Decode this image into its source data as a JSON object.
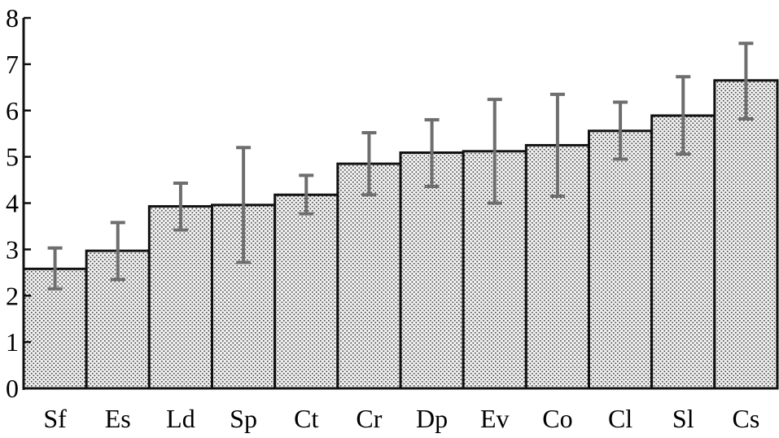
{
  "chart_data": {
    "type": "bar",
    "categories": [
      "Sf",
      "Es",
      "Ld",
      "Sp",
      "Ct",
      "Cr",
      "Dp",
      "Ev",
      "Co",
      "Cl",
      "Sl",
      "Cs"
    ],
    "values": [
      2.58,
      2.97,
      3.93,
      3.96,
      4.18,
      4.85,
      5.09,
      5.12,
      5.25,
      5.56,
      5.89,
      6.65
    ],
    "error_lower": [
      2.15,
      2.35,
      3.42,
      2.72,
      3.77,
      4.18,
      4.36,
      4.0,
      4.15,
      4.95,
      5.06,
      5.82
    ],
    "error_upper": [
      3.03,
      3.58,
      4.43,
      5.2,
      4.6,
      5.52,
      5.8,
      6.24,
      6.35,
      6.18,
      6.73,
      7.45
    ],
    "ylim": [
      0,
      8
    ],
    "yticks": [
      "0",
      "1",
      "2",
      "3",
      "4",
      "5",
      "6",
      "7",
      "8"
    ],
    "title": "",
    "xlabel": "",
    "ylabel": "",
    "bar_fill": "#f2f2f2",
    "bar_dot_color": "#444444",
    "bar_edge_color": "#111111",
    "error_bar_color": "#6e6e6e",
    "grid": false
  }
}
